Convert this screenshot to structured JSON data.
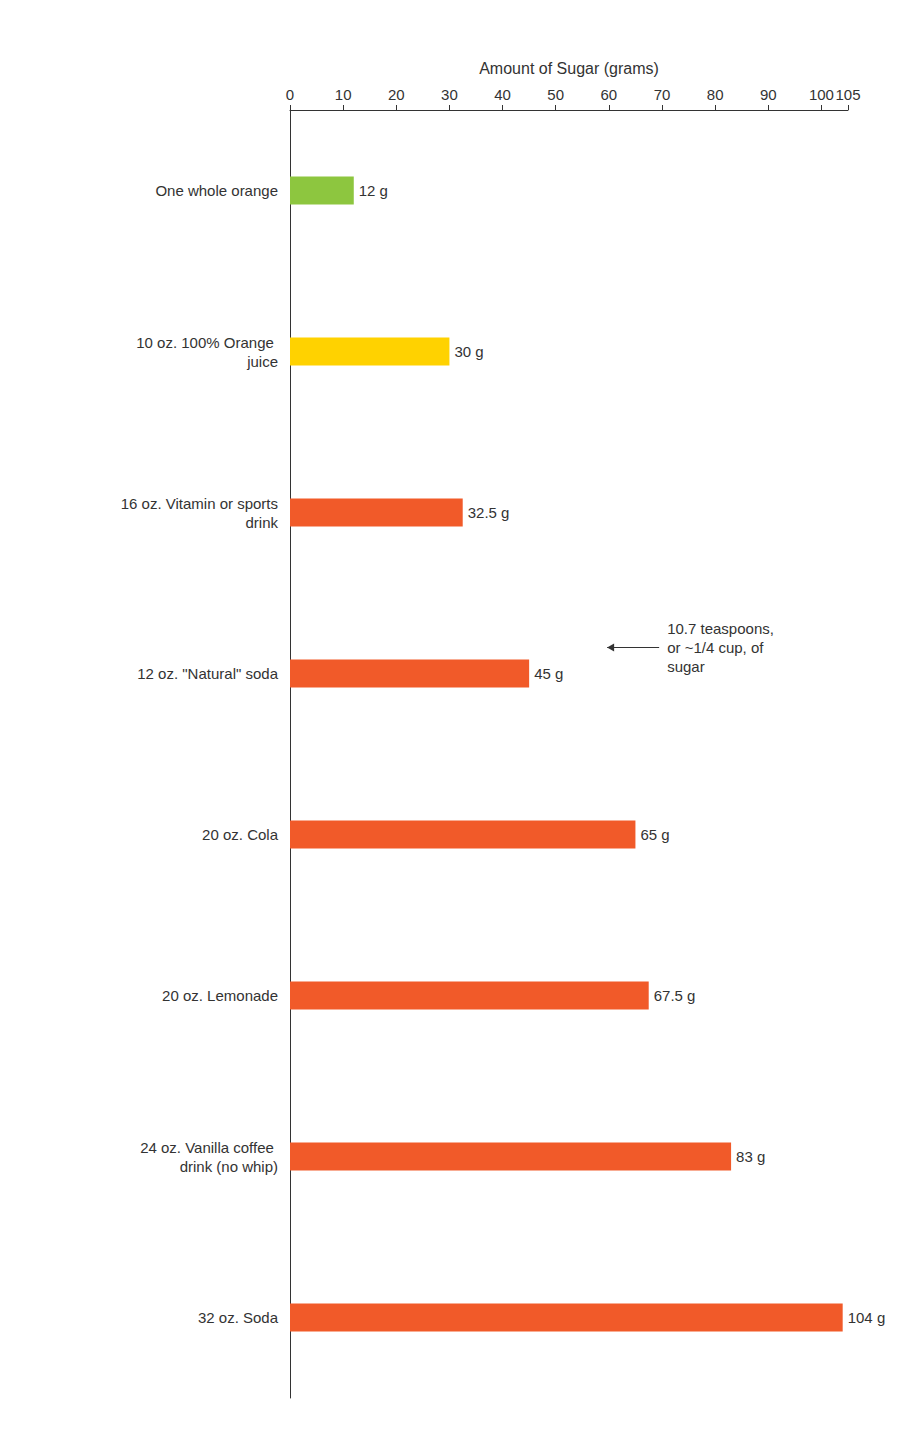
{
  "chart_data": {
    "type": "bar",
    "orientation": "horizontal",
    "x_label": "Amount of Sugar (grams)",
    "categories": [
      "One whole orange",
      "10 oz. 100% Orange juice",
      "16 oz. Vitamin or sports drink",
      "12 oz. \"Natural\" soda",
      "20 oz. Cola",
      "20 oz. Lemonade",
      "24 oz. Vanilla coffee drink (no whip)",
      "32 oz. Soda"
    ],
    "values": [
      12,
      30,
      32.5,
      45,
      65,
      67.5,
      83,
      104
    ],
    "value_labels": [
      "12 g",
      "30 g",
      "32.5 g",
      "45 g",
      "65 g",
      "67.5 g",
      "83 g",
      "104 g"
    ],
    "colors": [
      "#8dc63f",
      "#ffd200",
      "#f15a29",
      "#f15a29",
      "#f15a29",
      "#f15a29",
      "#f15a29",
      "#f15a29"
    ],
    "xlim": [
      0,
      105
    ],
    "xticks": [
      0,
      10,
      20,
      30,
      40,
      50,
      60,
      70,
      80,
      90,
      100
    ],
    "grid": false,
    "data_labels": true,
    "annotations": [
      {
        "text": "10.7 teaspoons, or ~1/4 cup, of sugar",
        "category": "12 oz. \"Natural\" soda"
      }
    ]
  }
}
